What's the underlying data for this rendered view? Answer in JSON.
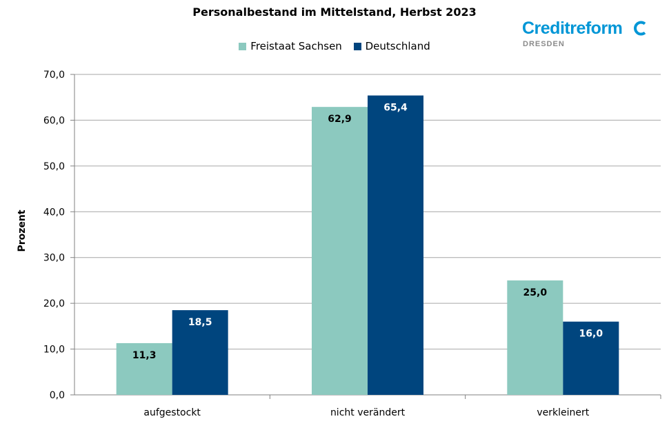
{
  "brand": {
    "name": "Creditreform",
    "city": "DRESDEN",
    "color": "#0096d6",
    "mark_icon": "creditreform-c-icon"
  },
  "chart_data": {
    "type": "bar",
    "title": "Personalbestand im Mittelstand, Herbst 2023",
    "xlabel": "",
    "ylabel": "Prozent",
    "ylim": [
      0,
      70
    ],
    "yticks": [
      0,
      10,
      20,
      30,
      40,
      50,
      60,
      70
    ],
    "ytick_labels": [
      "0,0",
      "10,0",
      "20,0",
      "30,0",
      "40,0",
      "50,0",
      "60,0",
      "70,0"
    ],
    "grid": true,
    "legend_position": "top-center",
    "categories": [
      "aufgestockt",
      "nicht verändert",
      "verkleinert"
    ],
    "series": [
      {
        "name": "Freistaat Sachsen",
        "color": "#8cc9bf",
        "label_color": "#000000",
        "values": [
          11.3,
          62.9,
          25.0
        ],
        "labels": [
          "11,3",
          "62,9",
          "25,0"
        ]
      },
      {
        "name": "Deutschland",
        "color": "#00457e",
        "label_color": "#ffffff",
        "values": [
          18.5,
          65.4,
          16.0
        ],
        "labels": [
          "18,5",
          "65,4",
          "16,0"
        ]
      }
    ]
  }
}
